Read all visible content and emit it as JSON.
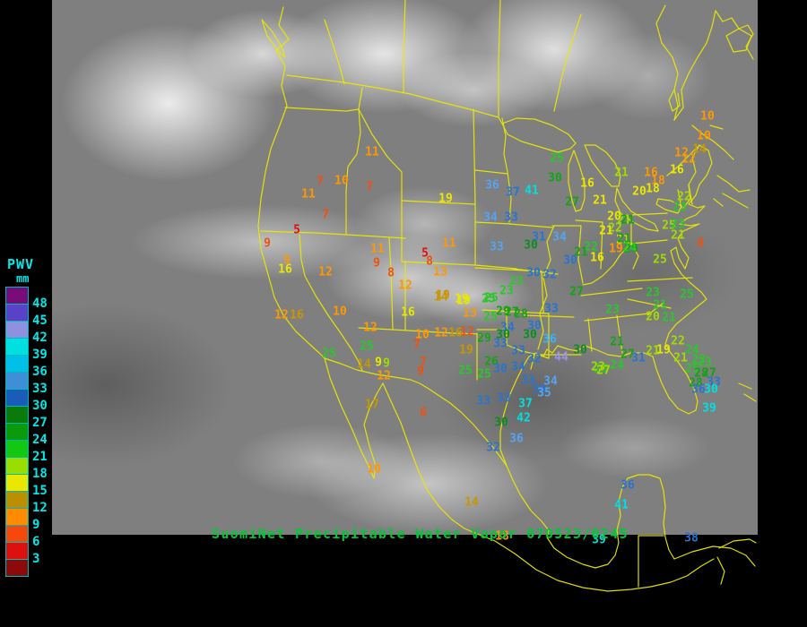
{
  "header": {
    "title": "SuomiNet Precipitable Water Vapor",
    "timestamp": "070523/0245"
  },
  "legend": {
    "title": "PWV",
    "unit": "mm",
    "tick_labels": [
      "48",
      "45",
      "42",
      "39",
      "36",
      "33",
      "30",
      "27",
      "24",
      "21",
      "18",
      "15",
      "12",
      "9",
      "6",
      "3"
    ],
    "box_colors": [
      "#7a0b7a",
      "#5a42c8",
      "#9090e0",
      "#00e0e0",
      "#00c0e8",
      "#3f8fd8",
      "#1a5cb8",
      "#0a7a0a",
      "#0a9a0a",
      "#12c812",
      "#9ade00",
      "#e8e800",
      "#bb8f00",
      "#ff8c00",
      "#f5480c",
      "#dd1010",
      "#8c0a0a"
    ]
  },
  "palette": {
    "red": "#e01010",
    "orangered": "#f05010",
    "orange": "#ff9800",
    "darkyellow": "#c89600",
    "yellow": "#e8e800",
    "yellowgreen": "#a0dc00",
    "green": "#28c828",
    "midgreen": "#12a412",
    "darkgreen": "#0e8c1e",
    "blue": "#2874d0",
    "lightblue": "#54a4f4",
    "skyblue": "#38b4f8",
    "cyan": "#00e0e0",
    "purple": "#9c94ec",
    "map_line": "#e8e800",
    "legend_text": "#00e8e8",
    "title_text": "#00c838"
  },
  "stations": [
    [
      "11",
      415,
      170,
      "orange"
    ],
    [
      "7",
      357,
      203,
      "orangered"
    ],
    [
      "10",
      381,
      202,
      "orange"
    ],
    [
      "7",
      412,
      209,
      "orangered"
    ],
    [
      "11",
      344,
      217,
      "orange"
    ],
    [
      "19",
      497,
      222,
      "yellow"
    ],
    [
      "7",
      363,
      240,
      "orangered"
    ],
    [
      "5",
      331,
      257,
      "red"
    ],
    [
      "9",
      298,
      272,
      "orangered"
    ],
    [
      "9",
      320,
      291,
      "orange"
    ],
    [
      "16",
      318,
      301,
      "yellow"
    ],
    [
      "12",
      363,
      304,
      "orange"
    ],
    [
      "11",
      421,
      278,
      "orange"
    ],
    [
      "9",
      420,
      294,
      "orangered"
    ],
    [
      "8",
      436,
      305,
      "orangered"
    ],
    [
      "5",
      474,
      283,
      "red"
    ],
    [
      "8",
      479,
      292,
      "orangered"
    ],
    [
      "13",
      491,
      304,
      "orange"
    ],
    [
      "11",
      501,
      272,
      "orange"
    ],
    [
      "12",
      452,
      319,
      "orange"
    ],
    [
      "19",
      494,
      330,
      "darkyellow"
    ],
    [
      "19",
      517,
      336,
      "yellow"
    ],
    [
      "16",
      455,
      349,
      "yellow"
    ],
    [
      "13",
      524,
      350,
      "orange"
    ],
    [
      "10",
      379,
      348,
      "orange"
    ],
    [
      "12",
      314,
      352,
      "orange"
    ],
    [
      "16",
      331,
      352,
      "darkyellow"
    ],
    [
      "12",
      413,
      366,
      "orange"
    ],
    [
      "10",
      471,
      374,
      "orange"
    ],
    [
      "12",
      492,
      372,
      "orange"
    ],
    [
      "16",
      508,
      372,
      "darkyellow"
    ],
    [
      "12",
      521,
      371,
      "orangered"
    ],
    [
      "7",
      465,
      385,
      "orangered"
    ],
    [
      "19",
      520,
      391,
      "darkyellow"
    ],
    [
      "25",
      367,
      395,
      "green"
    ],
    [
      "25",
      409,
      387,
      "green"
    ],
    [
      "14",
      406,
      407,
      "darkyellow"
    ],
    [
      "9",
      422,
      405,
      "yellow"
    ],
    [
      "9",
      431,
      406,
      "yellowgreen"
    ],
    [
      "12",
      428,
      420,
      "orange"
    ],
    [
      "7",
      472,
      405,
      "orangered"
    ],
    [
      "9",
      469,
      415,
      "orangered"
    ],
    [
      "25",
      519,
      414,
      "green"
    ],
    [
      "25",
      540,
      418,
      "green"
    ],
    [
      "17",
      415,
      452,
      "darkyellow"
    ],
    [
      "6",
      472,
      461,
      "orangered"
    ],
    [
      "10",
      417,
      524,
      "orange"
    ],
    [
      "14",
      526,
      561,
      "darkyellow"
    ],
    [
      "18",
      560,
      599,
      "orange"
    ],
    [
      "36",
      549,
      207,
      "lightblue"
    ],
    [
      "37",
      572,
      215,
      "blue"
    ],
    [
      "41",
      593,
      213,
      "cyan"
    ],
    [
      "30",
      619,
      199,
      "midgreen"
    ],
    [
      "25",
      621,
      177,
      "green"
    ],
    [
      "27",
      638,
      226,
      "midgreen"
    ],
    [
      "16",
      655,
      205,
      "yellow"
    ],
    [
      "21",
      693,
      193,
      "yellowgreen"
    ],
    [
      "16",
      726,
      193,
      "orange"
    ],
    [
      "16",
      755,
      190,
      "yellow"
    ],
    [
      "18",
      734,
      202,
      "orange"
    ],
    [
      "18",
      728,
      211,
      "yellow"
    ],
    [
      "20",
      713,
      214,
      "yellow"
    ],
    [
      "21",
      669,
      224,
      "yellow"
    ],
    [
      "34",
      547,
      243,
      "lightblue"
    ],
    [
      "33",
      570,
      243,
      "blue"
    ],
    [
      "31",
      601,
      265,
      "blue"
    ],
    [
      "34",
      624,
      265,
      "lightblue"
    ],
    [
      "30",
      592,
      274,
      "darkgreen"
    ],
    [
      "33",
      554,
      276,
      "lightblue"
    ],
    [
      "30",
      595,
      305,
      "blue"
    ],
    [
      "32",
      613,
      307,
      "blue"
    ],
    [
      "23",
      576,
      314,
      "green"
    ],
    [
      "23",
      565,
      325,
      "green"
    ],
    [
      "25",
      548,
      333,
      "green"
    ],
    [
      "27",
      643,
      326,
      "midgreen"
    ],
    [
      "26",
      548,
      404,
      "midgreen"
    ],
    [
      "22",
      659,
      276,
      "green"
    ],
    [
      "21",
      648,
      282,
      "midgreen"
    ],
    [
      "16",
      666,
      288,
      "yellow"
    ],
    [
      "30",
      636,
      291,
      "blue"
    ],
    [
      "22",
      686,
      255,
      "yellowgreen"
    ],
    [
      "21",
      676,
      258,
      "yellow"
    ],
    [
      "20",
      685,
      242,
      "yellow"
    ],
    [
      "21",
      696,
      246,
      "yellowgreen"
    ],
    [
      "21",
      695,
      268,
      "yellow"
    ],
    [
      "19",
      687,
      278,
      "orange"
    ],
    [
      "29",
      704,
      278,
      "midgreen"
    ],
    [
      "10",
      789,
      130,
      "orange"
    ],
    [
      "10",
      785,
      152,
      "orange"
    ],
    [
      "14",
      780,
      167,
      "darkyellow"
    ],
    [
      "12",
      760,
      171,
      "orange"
    ],
    [
      "12",
      768,
      178,
      "orange"
    ],
    [
      "23",
      758,
      232,
      "green"
    ],
    [
      "22",
      763,
      220,
      "yellowgreen"
    ],
    [
      "25",
      746,
      252,
      "yellowgreen"
    ],
    [
      "23",
      756,
      251,
      "green"
    ],
    [
      "21",
      756,
      263,
      "yellowgreen"
    ],
    [
      "8",
      781,
      272,
      "orangered"
    ],
    [
      "25",
      736,
      290,
      "yellowgreen"
    ],
    [
      "21",
      700,
      246,
      "midgreen"
    ],
    [
      "21",
      696,
      267,
      "midgreen"
    ],
    [
      "24",
      702,
      277,
      "green"
    ],
    [
      "23",
      728,
      327,
      "green"
    ],
    [
      "25",
      766,
      329,
      "green"
    ],
    [
      "21",
      736,
      341,
      "green"
    ],
    [
      "20",
      728,
      354,
      "yellowgreen"
    ],
    [
      "21",
      746,
      355,
      "green"
    ],
    [
      "23",
      683,
      346,
      "green"
    ],
    [
      "21",
      688,
      382,
      "midgreen"
    ],
    [
      "30",
      647,
      391,
      "darkgreen"
    ],
    [
      "44",
      626,
      399,
      "purple"
    ],
    [
      "22",
      756,
      381,
      "yellowgreen"
    ],
    [
      "24",
      772,
      391,
      "green"
    ],
    [
      "21",
      728,
      392,
      "yellowgreen"
    ],
    [
      "19",
      740,
      391,
      "yellow"
    ],
    [
      "21",
      759,
      400,
      "yellowgreen"
    ],
    [
      "23",
      779,
      402,
      "green"
    ],
    [
      "23",
      786,
      405,
      "green"
    ],
    [
      "27",
      700,
      396,
      "midgreen"
    ],
    [
      "31",
      712,
      400,
      "blue"
    ],
    [
      "24",
      688,
      408,
      "green"
    ],
    [
      "23",
      670,
      412,
      "green"
    ],
    [
      "25",
      772,
      412,
      "green"
    ],
    [
      "28",
      782,
      417,
      "midgreen"
    ],
    [
      "27",
      791,
      417,
      "midgreen"
    ],
    [
      "28",
      776,
      428,
      "midgreen"
    ],
    [
      "33",
      796,
      427,
      "blue"
    ],
    [
      "36",
      779,
      435,
      "blue"
    ],
    [
      "30",
      793,
      435,
      "cyan"
    ],
    [
      "39",
      791,
      456,
      "cyan"
    ],
    [
      "14",
      492,
      332,
      "darkyellow"
    ],
    [
      "19",
      515,
      334,
      "yellow"
    ],
    [
      "25",
      545,
      334,
      "green"
    ],
    [
      "25",
      547,
      354,
      "green"
    ],
    [
      "29",
      561,
      348,
      "midgreen"
    ],
    [
      "27",
      571,
      349,
      "midgreen"
    ],
    [
      "28",
      581,
      351,
      "midgreen"
    ],
    [
      "33",
      615,
      345,
      "blue"
    ],
    [
      "34",
      566,
      366,
      "blue"
    ],
    [
      "30",
      596,
      364,
      "blue"
    ],
    [
      "30",
      561,
      374,
      "darkgreen"
    ],
    [
      "30",
      591,
      374,
      "darkgreen"
    ],
    [
      "29",
      540,
      378,
      "midgreen"
    ],
    [
      "33",
      558,
      384,
      "blue"
    ],
    [
      "36",
      613,
      379,
      "skyblue"
    ],
    [
      "33",
      578,
      392,
      "blue"
    ],
    [
      "32",
      596,
      401,
      "blue"
    ],
    [
      "34",
      578,
      410,
      "blue"
    ],
    [
      "30",
      558,
      412,
      "blue"
    ],
    [
      "33",
      589,
      425,
      "blue"
    ],
    [
      "34",
      614,
      426,
      "lightblue"
    ],
    [
      "30",
      601,
      435,
      "blue"
    ],
    [
      "35",
      607,
      439,
      "lightblue"
    ],
    [
      "33",
      539,
      448,
      "blue"
    ],
    [
      "33",
      562,
      445,
      "blue"
    ],
    [
      "37",
      586,
      451,
      "cyan"
    ],
    [
      "42",
      584,
      467,
      "cyan"
    ],
    [
      "30",
      559,
      472,
      "darkgreen"
    ],
    [
      "36",
      576,
      490,
      "lightblue"
    ],
    [
      "32",
      550,
      500,
      "blue"
    ],
    [
      "23",
      667,
      410,
      "yellowgreen"
    ],
    [
      "27",
      673,
      414,
      "yellowgreen"
    ],
    [
      "36",
      700,
      542,
      "blue"
    ],
    [
      "41",
      693,
      564,
      "cyan"
    ],
    [
      "39",
      668,
      603,
      "cyan"
    ],
    [
      "38",
      771,
      601,
      "blue"
    ]
  ]
}
